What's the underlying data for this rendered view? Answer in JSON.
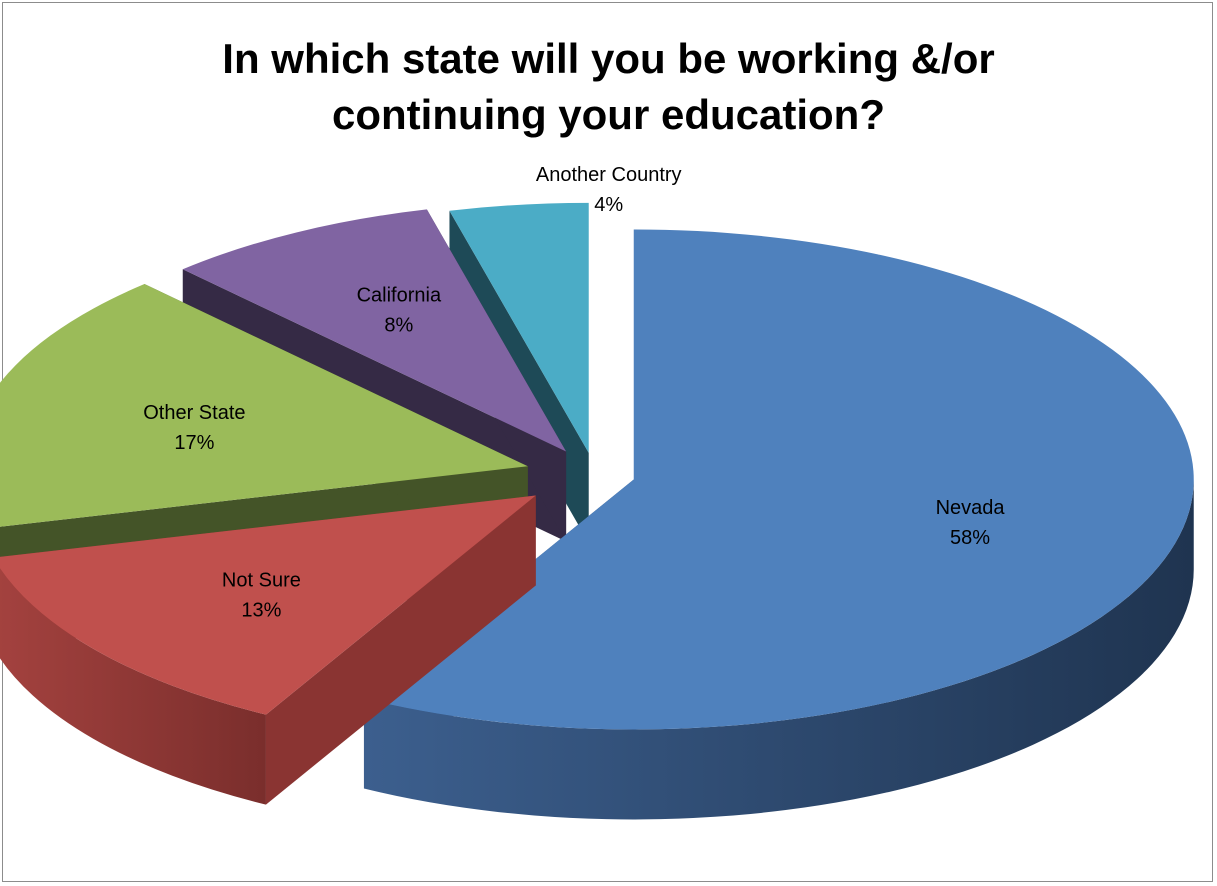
{
  "chart_data": {
    "type": "pie",
    "style": "3d-exploded",
    "title": "In which state will you be working &/or continuing your education?",
    "title_lines": [
      "In which state will you be working &/or",
      "continuing your education?"
    ],
    "legend": "none",
    "slices": [
      {
        "label": "Nevada",
        "percent_label": "58%",
        "value": 58,
        "color": "#4F81BD",
        "side_color": "#2E4A72"
      },
      {
        "label": "Not Sure",
        "percent_label": "13%",
        "value": 13,
        "color": "#C0504D",
        "side_color": "#8A3432"
      },
      {
        "label": "Other State",
        "percent_label": "17%",
        "value": 17,
        "color": "#9BBB59",
        "side_color": "#445428"
      },
      {
        "label": "California",
        "percent_label": "8%",
        "value": 8,
        "color": "#8064A2",
        "side_color": "#352A45"
      },
      {
        "label": "Another Country",
        "percent_label": "4%",
        "value": 4,
        "color": "#4BACC6",
        "side_color": "#1E4A57"
      }
    ]
  }
}
